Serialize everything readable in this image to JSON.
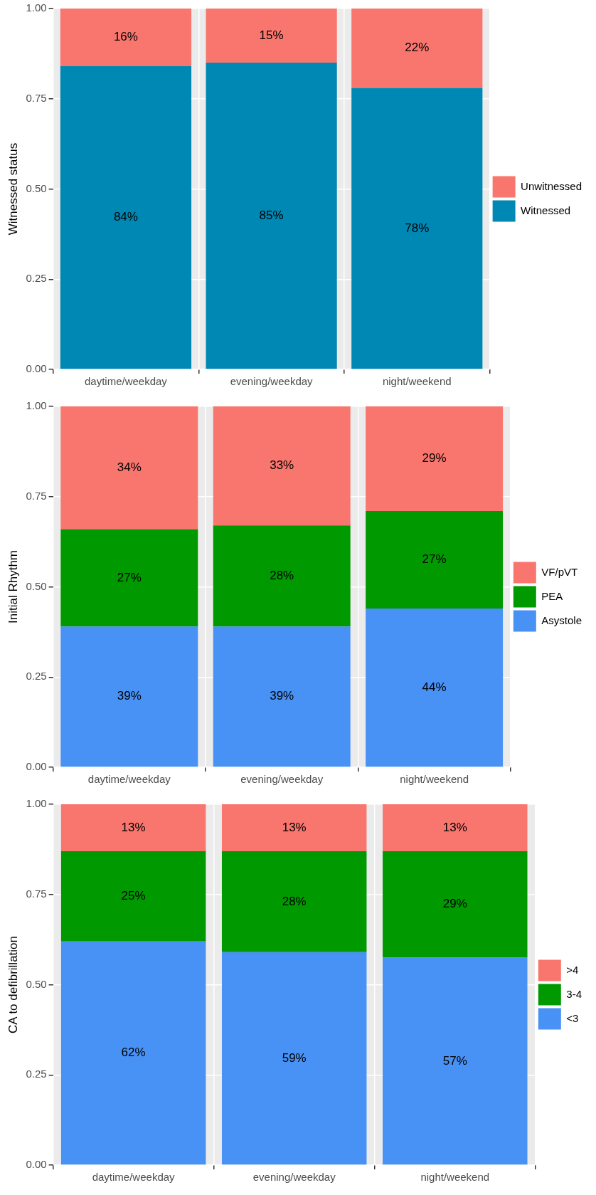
{
  "chart_data": [
    {
      "type": "bar",
      "stacked": true,
      "ylabel": "Witnessed status",
      "categories": [
        "daytime/weekday",
        "evening/weekday",
        "night/weekend"
      ],
      "ylim": [
        0,
        1
      ],
      "yticks": [
        {
          "value": 0,
          "label": "0.00"
        },
        {
          "value": 0.25,
          "label": "0.25"
        },
        {
          "value": 0.5,
          "label": "0.50"
        },
        {
          "value": 0.75,
          "label": "0.75"
        },
        {
          "value": 1,
          "label": "1.00"
        }
      ],
      "grid": true,
      "legend": "right",
      "series": [
        {
          "name": "Witnessed",
          "color": "#0088b4",
          "values": [
            0.84,
            0.85,
            0.78
          ],
          "value_labels": [
            "84%",
            "85%",
            "78%"
          ]
        },
        {
          "name": "Unwitnessed",
          "color": "#f8766d",
          "values": [
            0.16,
            0.15,
            0.22
          ],
          "value_labels": [
            "16%",
            "15%",
            "22%"
          ]
        }
      ]
    },
    {
      "type": "bar",
      "stacked": true,
      "ylabel": "Initial Rhythm",
      "categories": [
        "daytime/weekday",
        "evening/weekday",
        "night/weekend"
      ],
      "ylim": [
        0,
        1
      ],
      "yticks": [
        {
          "value": 0,
          "label": "0.00"
        },
        {
          "value": 0.25,
          "label": "0.25"
        },
        {
          "value": 0.5,
          "label": "0.50"
        },
        {
          "value": 0.75,
          "label": "0.75"
        },
        {
          "value": 1,
          "label": "1.00"
        }
      ],
      "grid": true,
      "legend": "right",
      "series": [
        {
          "name": "Asystole",
          "color": "#4891f5",
          "values": [
            0.39,
            0.39,
            0.44
          ],
          "value_labels": [
            "39%",
            "39%",
            "44%"
          ]
        },
        {
          "name": "PEA",
          "color": "#009900",
          "values": [
            0.27,
            0.28,
            0.27
          ],
          "value_labels": [
            "27%",
            "28%",
            "27%"
          ]
        },
        {
          "name": "VF/pVT",
          "color": "#f8766d",
          "values": [
            0.34,
            0.33,
            0.29
          ],
          "value_labels": [
            "34%",
            "33%",
            "29%"
          ]
        }
      ]
    },
    {
      "type": "bar",
      "stacked": true,
      "ylabel": "CA to defibrillation",
      "categories": [
        "daytime/weekday",
        "evening/weekday",
        "night/weekend"
      ],
      "ylim": [
        0,
        1
      ],
      "yticks": [
        {
          "value": 0,
          "label": "0.00"
        },
        {
          "value": 0.25,
          "label": "0.25"
        },
        {
          "value": 0.5,
          "label": "0.50"
        },
        {
          "value": 0.75,
          "label": "0.75"
        },
        {
          "value": 1,
          "label": "1.00"
        }
      ],
      "grid": true,
      "legend": "right",
      "series": [
        {
          "name": "<3",
          "color": "#4891f5",
          "values": [
            0.62,
            0.59,
            0.575
          ],
          "value_labels": [
            "62%",
            "59%",
            "57%"
          ]
        },
        {
          "name": "3-4",
          "color": "#009900",
          "values": [
            0.25,
            0.28,
            0.295
          ],
          "value_labels": [
            "25%",
            "28%",
            "29%"
          ]
        },
        {
          "name": ">4",
          "color": "#f8766d",
          "values": [
            0.13,
            0.13,
            0.13
          ],
          "value_labels": [
            "13%",
            "13%",
            "13%"
          ]
        }
      ]
    }
  ]
}
